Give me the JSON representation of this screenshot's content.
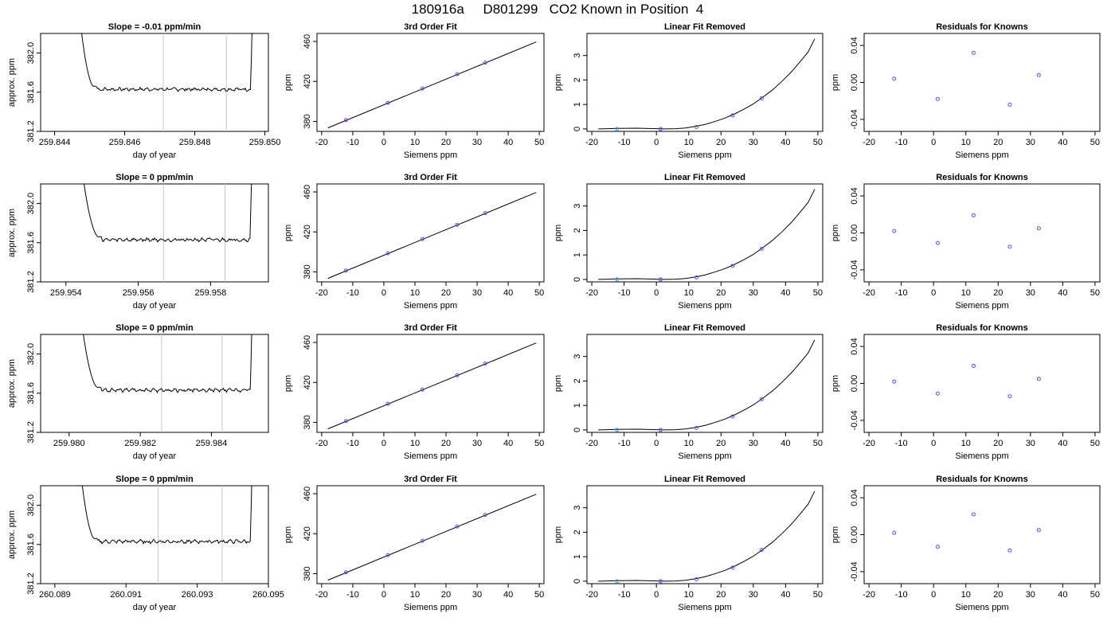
{
  "page": {
    "title": "180916a     D801299   CO2 Known in Position  4"
  },
  "chart_data": [
    {
      "row": 0,
      "col": 0,
      "type": "line",
      "title": "Slope =  -0.01  ppm/min",
      "xlabel": "day of year",
      "ylabel": "approx. ppm",
      "xlim": [
        259.8436,
        259.8501
      ],
      "ylim": [
        381.2,
        382.2
      ],
      "xticks": [
        "259.844",
        "259.846",
        "259.848",
        "259.850"
      ],
      "yticks": [
        "381.2",
        "381.6",
        "382.0"
      ],
      "vlines": [
        259.8471,
        259.8489
      ],
      "mark_x": 259.848,
      "mark_y": 381.63,
      "trace": {
        "x_start": 259.8446,
        "x_end": 259.8497,
        "plateau_start": 259.8452,
        "plateau_end": 259.8496,
        "level": 381.63
      }
    },
    {
      "row": 0,
      "col": 1,
      "type": "scatter",
      "title": "3rd Order Fit",
      "xlabel": "Siemens ppm",
      "ylabel": "ppm",
      "xlim": [
        -21.5,
        51.5
      ],
      "ylim": [
        370,
        468
      ],
      "xticks": [
        "-20",
        "-10",
        "0",
        "10",
        "20",
        "30",
        "40",
        "50"
      ],
      "yticks": [
        "380",
        "420",
        "460"
      ],
      "points": {
        "x": [
          -12.2,
          1.3,
          12.4,
          23.6,
          32.6
        ],
        "y": [
          381.3,
          398.6,
          412.8,
          427.2,
          438.8
        ]
      },
      "fit_line": {
        "x": [
          -18,
          49
        ],
        "y": [
          373.5,
          459.5
        ]
      }
    },
    {
      "row": 0,
      "col": 2,
      "type": "scatter",
      "title": "Linear Fit Removed",
      "xlabel": "Siemens ppm",
      "ylabel": "ppm",
      "xlim": [
        -21.5,
        51.5
      ],
      "ylim": [
        -0.1,
        3.9
      ],
      "xticks": [
        "-20",
        "-10",
        "0",
        "10",
        "20",
        "30",
        "40",
        "50"
      ],
      "yticks": [
        "0",
        "1",
        "2",
        "3"
      ],
      "points": {
        "x": [
          -12.2,
          1.3,
          12.4,
          23.6,
          32.6
        ],
        "y": [
          0.0,
          0.0,
          0.08,
          0.55,
          1.25
        ]
      },
      "curve": {
        "x": [
          -18,
          -12,
          -6,
          0,
          3,
          6,
          9,
          12,
          15,
          18,
          21,
          24,
          27,
          30,
          33,
          36,
          39,
          42,
          45,
          47,
          49
        ],
        "y": [
          0.0,
          0.02,
          0.03,
          0.01,
          0.0,
          0.01,
          0.04,
          0.1,
          0.18,
          0.3,
          0.43,
          0.6,
          0.8,
          1.02,
          1.3,
          1.6,
          1.96,
          2.36,
          2.82,
          3.15,
          3.68
        ]
      }
    },
    {
      "row": 0,
      "col": 3,
      "type": "scatter",
      "title": "Residuals for Knowns",
      "xlabel": "Siemens ppm",
      "ylabel": "ppm",
      "xlim": [
        -21.5,
        51.5
      ],
      "ylim": [
        -0.053,
        0.053
      ],
      "xticks": [
        "-20",
        "-10",
        "0",
        "10",
        "20",
        "30",
        "40",
        "50"
      ],
      "yticks": [
        "-0.04",
        "0.00",
        "0.04"
      ],
      "ytick_values": [
        -0.04,
        0.0,
        0.04
      ],
      "points": {
        "x": [
          -12.2,
          1.3,
          12.4,
          23.6,
          32.6
        ],
        "y": [
          0.004,
          -0.018,
          0.032,
          -0.024,
          0.008
        ]
      }
    },
    {
      "row": 1,
      "col": 0,
      "type": "line",
      "title": "Slope =  0  ppm/min",
      "xlabel": "day of year",
      "ylabel": "approx. ppm",
      "xlim": [
        259.9533,
        259.9596
      ],
      "ylim": [
        381.2,
        382.2
      ],
      "xticks": [
        "259.954",
        "259.956",
        "259.958"
      ],
      "yticks": [
        "381.2",
        "381.6",
        "382.0"
      ],
      "vlines": [
        259.9567,
        259.9584
      ],
      "mark_x": 259.9572,
      "mark_y": 381.63,
      "trace": {
        "x_start": 259.9543,
        "x_end": 259.9592,
        "plateau_start": 259.955,
        "plateau_end": 259.9591,
        "level": 381.63
      }
    },
    {
      "row": 1,
      "col": 1,
      "type": "scatter",
      "title": "3rd Order Fit",
      "xlabel": "Siemens ppm",
      "ylabel": "ppm",
      "xlim": [
        -21.5,
        51.5
      ],
      "ylim": [
        370,
        468
      ],
      "xticks": [
        "-20",
        "-10",
        "0",
        "10",
        "20",
        "30",
        "40",
        "50"
      ],
      "yticks": [
        "380",
        "420",
        "460"
      ],
      "points": {
        "x": [
          -12.2,
          1.3,
          12.4,
          23.6,
          32.6
        ],
        "y": [
          381.3,
          398.6,
          412.8,
          427.2,
          438.8
        ]
      },
      "fit_line": {
        "x": [
          -18,
          49
        ],
        "y": [
          373.5,
          459.5
        ]
      }
    },
    {
      "row": 1,
      "col": 2,
      "type": "scatter",
      "title": "Linear Fit Removed",
      "xlabel": "Siemens ppm",
      "ylabel": "ppm",
      "xlim": [
        -21.5,
        51.5
      ],
      "ylim": [
        -0.1,
        3.9
      ],
      "xticks": [
        "-20",
        "-10",
        "0",
        "10",
        "20",
        "30",
        "40",
        "50"
      ],
      "yticks": [
        "0",
        "1",
        "2",
        "3"
      ],
      "points": {
        "x": [
          -12.2,
          1.3,
          12.4,
          23.6,
          32.6
        ],
        "y": [
          0.0,
          0.0,
          0.08,
          0.55,
          1.25
        ]
      },
      "curve": {
        "x": [
          -18,
          -12,
          -6,
          0,
          3,
          6,
          9,
          12,
          15,
          18,
          21,
          24,
          27,
          30,
          33,
          36,
          39,
          42,
          45,
          47,
          49
        ],
        "y": [
          0.0,
          0.02,
          0.03,
          0.01,
          0.0,
          0.01,
          0.04,
          0.1,
          0.18,
          0.3,
          0.43,
          0.6,
          0.8,
          1.02,
          1.3,
          1.6,
          1.96,
          2.36,
          2.82,
          3.15,
          3.68
        ]
      }
    },
    {
      "row": 1,
      "col": 3,
      "type": "scatter",
      "title": "Residuals for Knowns",
      "xlabel": "Siemens ppm",
      "ylabel": "ppm",
      "xlim": [
        -21.5,
        51.5
      ],
      "ylim": [
        -0.053,
        0.053
      ],
      "xticks": [
        "-20",
        "-10",
        "0",
        "10",
        "20",
        "30",
        "40",
        "50"
      ],
      "yticks": [
        "-0.04",
        "0.00",
        "0.04"
      ],
      "ytick_values": [
        -0.04,
        0.0,
        0.04
      ],
      "points": {
        "x": [
          -12.2,
          1.3,
          12.4,
          23.6,
          32.6
        ],
        "y": [
          0.002,
          -0.011,
          0.019,
          -0.015,
          0.005
        ]
      }
    },
    {
      "row": 2,
      "col": 0,
      "type": "line",
      "title": "Slope =  0  ppm/min",
      "xlabel": "day of year",
      "ylabel": "approx. ppm",
      "xlim": [
        259.9792,
        259.9856
      ],
      "ylim": [
        381.2,
        382.2
      ],
      "xticks": [
        "259.980",
        "259.982",
        "259.984"
      ],
      "yticks": [
        "381.2",
        "381.6",
        "382.0"
      ],
      "vlines": [
        259.9826,
        259.9843
      ],
      "mark_x": 259.9833,
      "mark_y": 381.63,
      "trace": {
        "x_start": 259.9802,
        "x_end": 259.9852,
        "plateau_start": 259.9809,
        "plateau_end": 259.9851,
        "level": 381.63
      }
    },
    {
      "row": 2,
      "col": 1,
      "type": "scatter",
      "title": "3rd Order Fit",
      "xlabel": "Siemens ppm",
      "ylabel": "ppm",
      "xlim": [
        -21.5,
        51.5
      ],
      "ylim": [
        370,
        468
      ],
      "xticks": [
        "-20",
        "-10",
        "0",
        "10",
        "20",
        "30",
        "40",
        "50"
      ],
      "yticks": [
        "380",
        "420",
        "460"
      ],
      "points": {
        "x": [
          -12.2,
          1.3,
          12.4,
          23.6,
          32.6
        ],
        "y": [
          381.3,
          398.6,
          412.8,
          427.2,
          438.8
        ]
      },
      "fit_line": {
        "x": [
          -18,
          49
        ],
        "y": [
          373.5,
          459.5
        ]
      }
    },
    {
      "row": 2,
      "col": 2,
      "type": "scatter",
      "title": "Linear Fit Removed",
      "xlabel": "Siemens ppm",
      "ylabel": "ppm",
      "xlim": [
        -21.5,
        51.5
      ],
      "ylim": [
        -0.1,
        3.9
      ],
      "xticks": [
        "-20",
        "-10",
        "0",
        "10",
        "20",
        "30",
        "40",
        "50"
      ],
      "yticks": [
        "0",
        "1",
        "2",
        "3"
      ],
      "points": {
        "x": [
          -12.2,
          1.3,
          12.4,
          23.6,
          32.6
        ],
        "y": [
          0.0,
          0.0,
          0.08,
          0.55,
          1.25
        ]
      },
      "curve": {
        "x": [
          -18,
          -12,
          -6,
          0,
          3,
          6,
          9,
          12,
          15,
          18,
          21,
          24,
          27,
          30,
          33,
          36,
          39,
          42,
          45,
          47,
          49
        ],
        "y": [
          0.0,
          0.02,
          0.03,
          0.01,
          0.0,
          0.01,
          0.04,
          0.1,
          0.18,
          0.3,
          0.43,
          0.6,
          0.8,
          1.02,
          1.3,
          1.6,
          1.96,
          2.36,
          2.82,
          3.15,
          3.68
        ]
      }
    },
    {
      "row": 2,
      "col": 3,
      "type": "scatter",
      "title": "Residuals for Knowns",
      "xlabel": "Siemens ppm",
      "ylabel": "ppm",
      "xlim": [
        -21.5,
        51.5
      ],
      "ylim": [
        -0.053,
        0.053
      ],
      "xticks": [
        "-20",
        "-10",
        "0",
        "10",
        "20",
        "30",
        "40",
        "50"
      ],
      "yticks": [
        "-0.04",
        "0.00",
        "0.04"
      ],
      "ytick_values": [
        -0.04,
        0.0,
        0.04
      ],
      "points": {
        "x": [
          -12.2,
          1.3,
          12.4,
          23.6,
          32.6
        ],
        "y": [
          0.002,
          -0.011,
          0.019,
          -0.014,
          0.005
        ]
      }
    },
    {
      "row": 3,
      "col": 0,
      "type": "line",
      "title": "Slope =  0  ppm/min",
      "xlabel": "day of year",
      "ylabel": "approx. ppm",
      "xlim": [
        260.0886,
        260.095
      ],
      "ylim": [
        381.2,
        382.2
      ],
      "xticks": [
        "260.089",
        "260.091",
        "260.093",
        "260.095"
      ],
      "yticks": [
        "381.2",
        "381.6",
        "382.0"
      ],
      "vlines": [
        260.0919,
        260.0937
      ],
      "mark_x": 260.0927,
      "mark_y": 381.63,
      "trace": {
        "x_start": 260.0896,
        "x_end": 260.0946,
        "plateau_start": 260.0902,
        "plateau_end": 260.0945,
        "level": 381.63
      }
    },
    {
      "row": 3,
      "col": 1,
      "type": "scatter",
      "title": "3rd Order Fit",
      "xlabel": "Siemens ppm",
      "ylabel": "ppm",
      "xlim": [
        -21.5,
        51.5
      ],
      "ylim": [
        370,
        468
      ],
      "xticks": [
        "-20",
        "-10",
        "0",
        "10",
        "20",
        "30",
        "40",
        "50"
      ],
      "yticks": [
        "380",
        "420",
        "460"
      ],
      "points": {
        "x": [
          -12.2,
          1.3,
          12.4,
          23.6,
          32.6
        ],
        "y": [
          381.3,
          398.6,
          412.8,
          427.2,
          438.8
        ]
      },
      "fit_line": {
        "x": [
          -18,
          49
        ],
        "y": [
          373.5,
          459.5
        ]
      }
    },
    {
      "row": 3,
      "col": 2,
      "type": "scatter",
      "title": "Linear Fit Removed",
      "xlabel": "Siemens ppm",
      "ylabel": "ppm",
      "xlim": [
        -21.5,
        51.5
      ],
      "ylim": [
        -0.1,
        3.9
      ],
      "xticks": [
        "-20",
        "-10",
        "0",
        "10",
        "20",
        "30",
        "40",
        "50"
      ],
      "yticks": [
        "0",
        "1",
        "2",
        "3"
      ],
      "points": {
        "x": [
          -12.2,
          1.3,
          12.4,
          23.6,
          32.6
        ],
        "y": [
          0.0,
          0.0,
          0.08,
          0.55,
          1.28
        ]
      },
      "curve": {
        "x": [
          -18,
          -12,
          -6,
          0,
          3,
          6,
          9,
          12,
          15,
          18,
          21,
          24,
          27,
          30,
          33,
          36,
          39,
          42,
          45,
          47,
          49
        ],
        "y": [
          0.0,
          0.02,
          0.03,
          0.01,
          0.0,
          0.01,
          0.04,
          0.1,
          0.18,
          0.3,
          0.43,
          0.6,
          0.8,
          1.02,
          1.3,
          1.6,
          1.96,
          2.36,
          2.82,
          3.15,
          3.68
        ]
      }
    },
    {
      "row": 3,
      "col": 3,
      "type": "scatter",
      "title": "Residuals for Knowns",
      "xlabel": "Siemens ppm",
      "ylabel": "ppm",
      "xlim": [
        -21.5,
        51.5
      ],
      "ylim": [
        -0.053,
        0.053
      ],
      "xticks": [
        "-20",
        "-10",
        "0",
        "10",
        "20",
        "30",
        "40",
        "50"
      ],
      "yticks": [
        "-0.04",
        "0.00",
        "0.04"
      ],
      "ytick_values": [
        -0.04,
        0.0,
        0.04
      ],
      "points": {
        "x": [
          -12.2,
          1.3,
          12.4,
          23.6,
          32.6
        ],
        "y": [
          0.002,
          -0.013,
          0.022,
          -0.017,
          0.005
        ]
      }
    }
  ],
  "colors": {
    "axis": "#000000",
    "trace": "#000000",
    "vline": "#c8c8c8",
    "point": "#7b3fe4",
    "point_low": "#3aa0e0",
    "mark": "#e05050"
  }
}
